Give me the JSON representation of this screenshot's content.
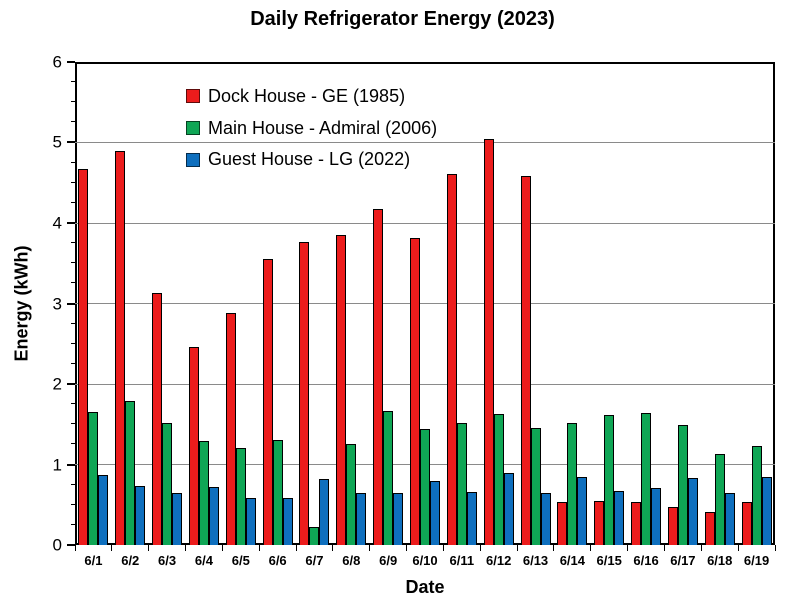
{
  "title": "Daily Refrigerator Energy (2023)",
  "chart_data": {
    "type": "bar",
    "title": "Daily Refrigerator Energy (2023)",
    "xlabel": "Date",
    "ylabel": "Energy (kWh)",
    "ylim": [
      0,
      6
    ],
    "y_major_step": 1,
    "y_minor_step": 0.25,
    "grid": true,
    "legend_position": "inside-top-left",
    "categories": [
      "6/1",
      "6/2",
      "6/3",
      "6/4",
      "6/5",
      "6/6",
      "6/7",
      "6/8",
      "6/9",
      "6/10",
      "6/11",
      "6/12",
      "6/13",
      "6/14",
      "6/15",
      "6/16",
      "6/17",
      "6/18",
      "6/19"
    ],
    "series": [
      {
        "name": "Dock House - GE (1985)",
        "color": "#EC1C1C",
        "values": [
          4.67,
          4.9,
          3.13,
          2.46,
          2.88,
          3.55,
          3.77,
          3.85,
          4.18,
          3.81,
          4.61,
          5.04,
          4.58,
          0.53,
          0.55,
          0.54,
          0.47,
          0.41,
          0.53
        ]
      },
      {
        "name": "Main House - Admiral (2006)",
        "color": "#0FA655",
        "values": [
          1.65,
          1.79,
          1.52,
          1.29,
          1.21,
          1.3,
          0.23,
          1.26,
          1.66,
          1.44,
          1.51,
          1.63,
          1.45,
          1.52,
          1.62,
          1.64,
          1.49,
          1.13,
          1.23
        ]
      },
      {
        "name": "Guest House - LG (2022)",
        "color": "#0E6FBE",
        "values": [
          0.87,
          0.73,
          0.64,
          0.72,
          0.58,
          0.59,
          0.82,
          0.65,
          0.65,
          0.8,
          0.66,
          0.89,
          0.64,
          0.84,
          0.67,
          0.71,
          0.83,
          0.65,
          0.84
        ]
      }
    ]
  },
  "colors": {
    "background": "#FFFFFF",
    "gridline": "#8A8A8A",
    "axis": "#000000",
    "text": "#000000"
  }
}
